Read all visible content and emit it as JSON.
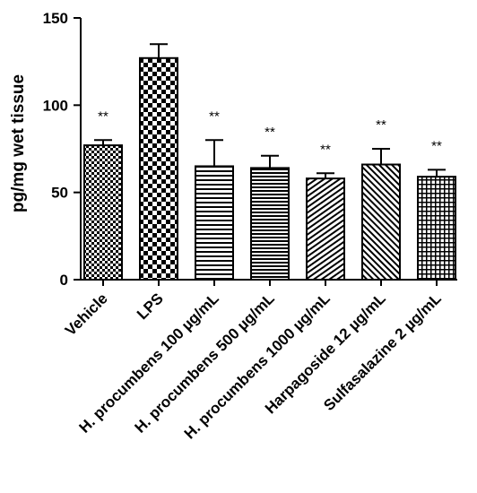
{
  "chart_data": {
    "type": "bar",
    "title": "",
    "xlabel": "",
    "ylabel": "pg/mg wet tissue",
    "ylim": [
      0,
      150
    ],
    "yticks": [
      0,
      50,
      100,
      150
    ],
    "grid": false,
    "categories": [
      "Vehicle",
      "LPS",
      "H. procumbens 100 µg/mL",
      "H. procumbens 500 µg/mL",
      "H. procumbens 1000 µg/mL",
      "Harpagoside 12 µg/mL",
      "Sulfasalazine 2 µg/mL"
    ],
    "values": [
      77,
      127,
      65,
      64,
      58,
      66,
      59
    ],
    "errors": [
      3,
      8,
      15,
      7,
      3,
      9,
      4
    ],
    "annotations": [
      "**",
      "",
      "**",
      "**",
      "**",
      "**",
      "**"
    ],
    "patterns": [
      "small-checker",
      "large-checker",
      "horizontal-lines",
      "horizontal-lines-dense",
      "diagonal-lines",
      "diagonal-lines-dense",
      "grid"
    ]
  }
}
